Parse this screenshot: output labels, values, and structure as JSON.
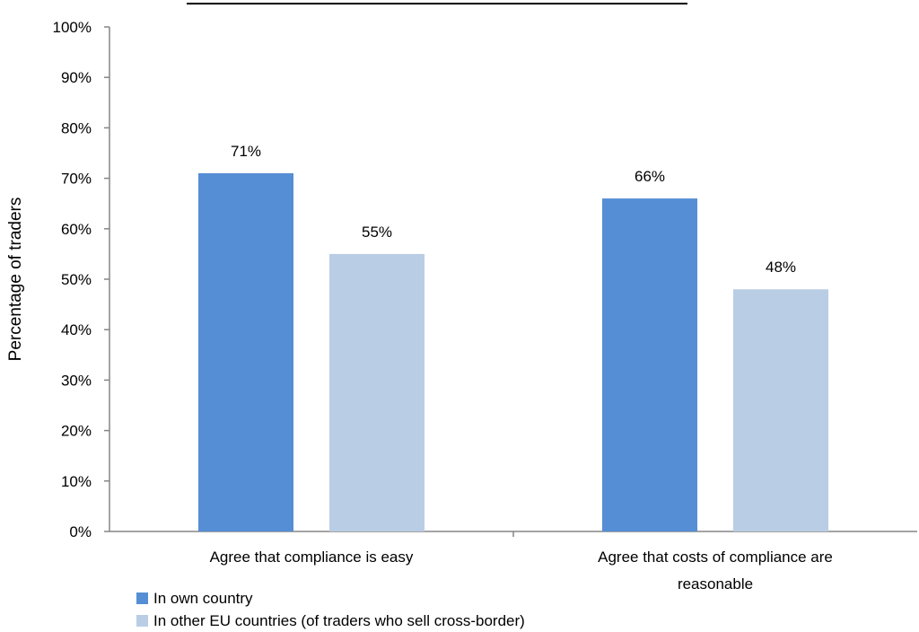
{
  "chart_data": {
    "type": "bar",
    "title": "",
    "ylabel": "Percentage of traders",
    "xlabel": "",
    "ylim": [
      0,
      100
    ],
    "yticks": [
      "0%",
      "10%",
      "20%",
      "30%",
      "40%",
      "50%",
      "60%",
      "70%",
      "80%",
      "90%",
      "100%"
    ],
    "categories": [
      [
        "Agree that compliance is easy"
      ],
      [
        "Agree that costs of compliance are",
        "reasonable"
      ]
    ],
    "series": [
      {
        "name": "In own country",
        "color": "#558ed5",
        "values": [
          71,
          66
        ],
        "labels": [
          "71%",
          "66%"
        ]
      },
      {
        "name": "In other EU countries (of traders who sell cross-border)",
        "color": "#b9cde5",
        "values": [
          55,
          48
        ],
        "labels": [
          "55%",
          "48%"
        ]
      }
    ],
    "grid": false,
    "legend_position": "bottom-left"
  }
}
